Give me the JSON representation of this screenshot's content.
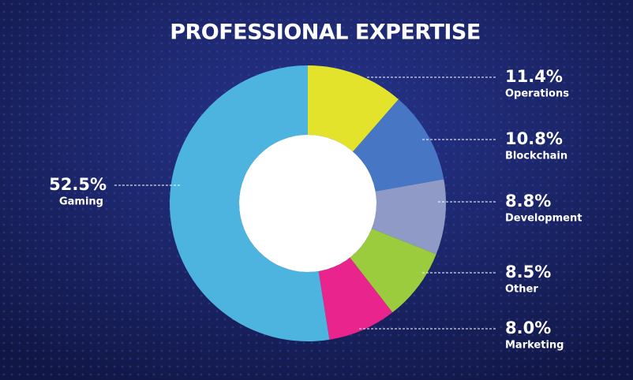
{
  "chart_data": {
    "type": "donut",
    "title": "PROFESSIONAL EXPERTISE",
    "categories": [
      "Operations",
      "Blockchain",
      "Development",
      "Other",
      "Marketing",
      "Gaming"
    ],
    "values": [
      11.4,
      10.8,
      8.8,
      8.5,
      8.0,
      52.5
    ],
    "value_labels": [
      "11.4%",
      "10.8%",
      "8.8%",
      "8.5%",
      "8.0%",
      "52.5%"
    ],
    "colors": [
      "#e4e32c",
      "#4776c4",
      "#8f9bc6",
      "#9bcc3e",
      "#e9248d",
      "#4cb4de"
    ]
  }
}
